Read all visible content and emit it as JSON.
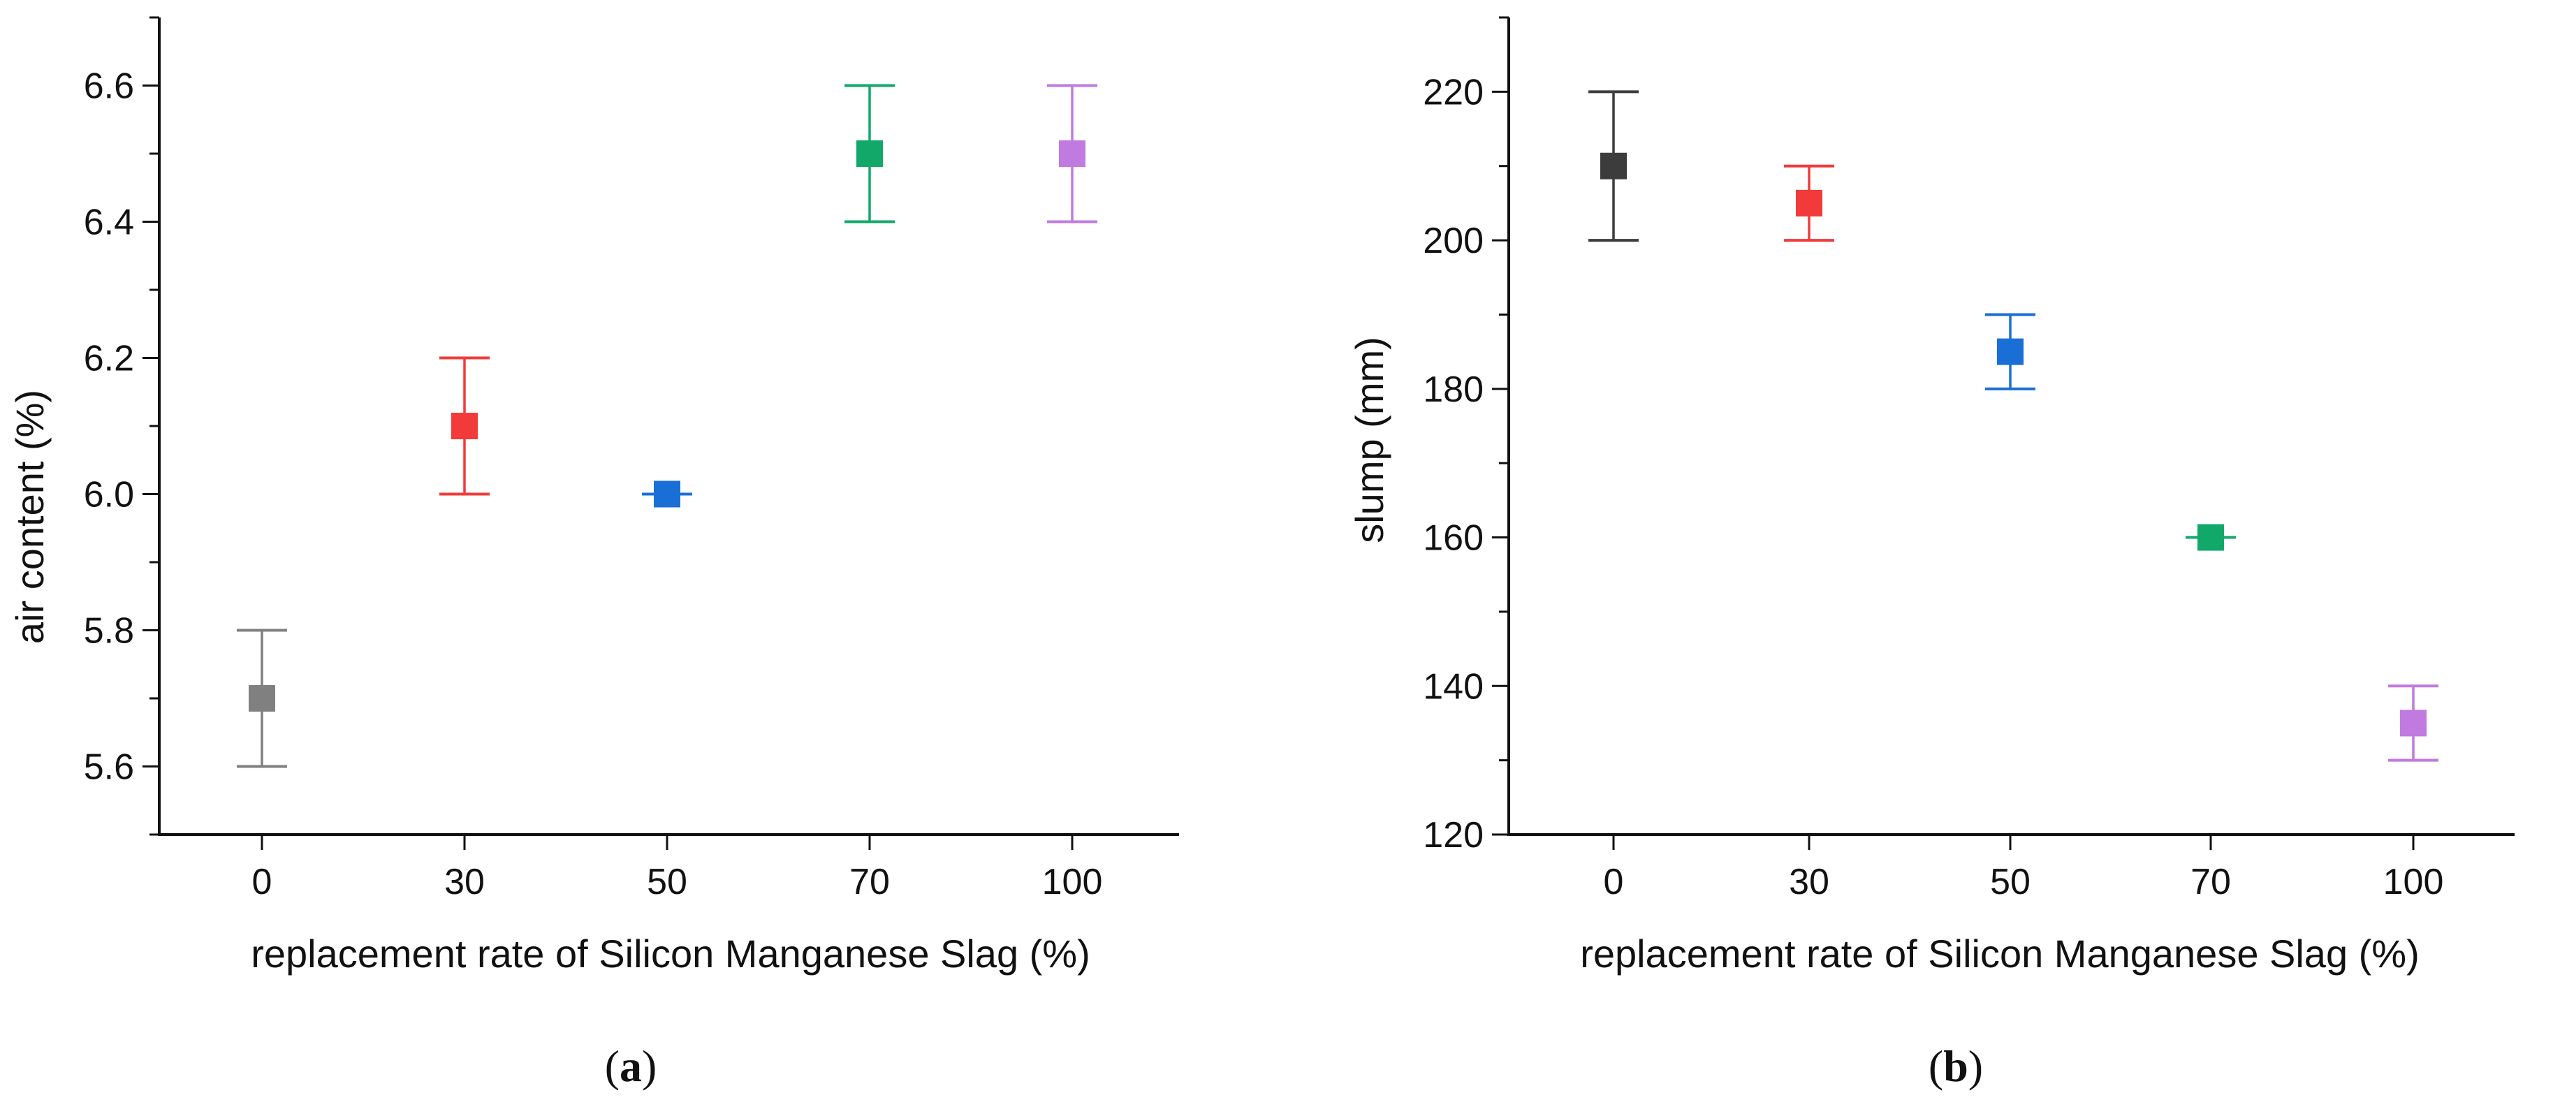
{
  "figure": {
    "panels": [
      {
        "caption_open": "(",
        "caption_letter": "a",
        "caption_close": ")"
      },
      {
        "caption_open": "(",
        "caption_letter": "b",
        "caption_close": ")"
      }
    ]
  },
  "chart_data": [
    {
      "type": "scatter",
      "title": "",
      "xlabel": "replacement rate of Silicon Manganese Slag (%)",
      "ylabel": "air content (%)",
      "categories": [
        "0",
        "30",
        "50",
        "70",
        "100"
      ],
      "values": [
        5.7,
        6.1,
        6.0,
        6.5,
        6.5
      ],
      "error_low": [
        5.6,
        6.0,
        6.0,
        6.4,
        6.4
      ],
      "error_high": [
        5.8,
        6.2,
        6.0,
        6.6,
        6.6
      ],
      "colors": [
        "#808080",
        "#f23a3a",
        "#1a6fd6",
        "#12a86a",
        "#c07ae0"
      ],
      "ylim": [
        5.5,
        6.7
      ],
      "yticks": [
        5.6,
        5.8,
        6.0,
        6.2,
        6.4,
        6.6
      ],
      "ytick_labels": [
        "5.6",
        "5.8",
        "6.0",
        "6.2",
        "6.4",
        "6.6"
      ],
      "yminor_step": 0.1,
      "grid": false,
      "legend": "none"
    },
    {
      "type": "scatter",
      "title": "",
      "xlabel": "replacement rate of Silicon Manganese Slag (%)",
      "ylabel": "slump (mm)",
      "categories": [
        "0",
        "30",
        "50",
        "70",
        "100"
      ],
      "values": [
        210,
        205,
        185,
        160,
        135
      ],
      "error_low": [
        200,
        200,
        180,
        160,
        130
      ],
      "error_high": [
        220,
        210,
        190,
        160,
        140
      ],
      "colors": [
        "#3c3c3c",
        "#f23a3a",
        "#1a6fd6",
        "#12a86a",
        "#c07ae0"
      ],
      "ylim": [
        120,
        230
      ],
      "yticks": [
        120,
        140,
        160,
        180,
        200,
        220
      ],
      "ytick_labels": [
        "120",
        "140",
        "160",
        "180",
        "200",
        "220"
      ],
      "yminor_step": 10,
      "grid": false,
      "legend": "none"
    }
  ]
}
